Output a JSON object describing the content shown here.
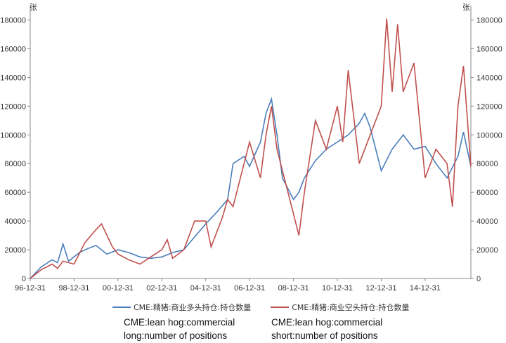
{
  "chart_data": {
    "type": "line",
    "unit_label_left": "张",
    "unit_label_right": "张",
    "ylim": [
      0,
      190000
    ],
    "yticks": [
      0,
      20000,
      40000,
      60000,
      80000,
      100000,
      120000,
      140000,
      160000,
      180000
    ],
    "xlim": [
      "1996-12-31",
      "2017-01-31"
    ],
    "xticks": [
      "96-12-31",
      "98-12-31",
      "00-12-31",
      "02-12-31",
      "04-12-31",
      "06-12-31",
      "08-12-31",
      "10-12-31",
      "12-12-31",
      "14-12-31"
    ],
    "grid": false,
    "legend_position": "bottom",
    "series": [
      {
        "name": "CME:精猪:商业多头持仓:持仓数量",
        "color": "#4a7ebb",
        "points": [
          [
            "1996-12-31",
            0
          ],
          [
            "1997-06-30",
            8000
          ],
          [
            "1997-12-31",
            13000
          ],
          [
            "1998-03-31",
            11000
          ],
          [
            "1998-06-30",
            24000
          ],
          [
            "1998-09-30",
            12000
          ],
          [
            "1999-03-31",
            18000
          ],
          [
            "1999-06-30",
            20000
          ],
          [
            "1999-12-31",
            23000
          ],
          [
            "2000-06-30",
            17000
          ],
          [
            "2000-12-31",
            20000
          ],
          [
            "2001-06-30",
            18000
          ],
          [
            "2001-12-31",
            15000
          ],
          [
            "2002-06-30",
            14000
          ],
          [
            "2002-12-31",
            15000
          ],
          [
            "2003-06-30",
            18000
          ],
          [
            "2003-12-31",
            20000
          ],
          [
            "2004-06-30",
            29000
          ],
          [
            "2004-12-31",
            38000
          ],
          [
            "2005-06-30",
            46000
          ],
          [
            "2005-12-31",
            55000
          ],
          [
            "2006-03-31",
            80000
          ],
          [
            "2006-09-30",
            85000
          ],
          [
            "2006-12-31",
            78000
          ],
          [
            "2007-06-30",
            95000
          ],
          [
            "2007-09-30",
            115000
          ],
          [
            "2007-12-31",
            125000
          ],
          [
            "2008-03-31",
            100000
          ],
          [
            "2008-06-30",
            70000
          ],
          [
            "2008-12-31",
            55000
          ],
          [
            "2009-03-31",
            60000
          ],
          [
            "2009-06-30",
            70000
          ],
          [
            "2009-12-31",
            82000
          ],
          [
            "2010-06-30",
            90000
          ],
          [
            "2010-12-31",
            95000
          ],
          [
            "2011-06-30",
            100000
          ],
          [
            "2011-12-31",
            108000
          ],
          [
            "2012-03-31",
            115000
          ],
          [
            "2012-06-30",
            105000
          ],
          [
            "2012-12-31",
            75000
          ],
          [
            "2013-06-30",
            90000
          ],
          [
            "2013-12-31",
            100000
          ],
          [
            "2014-06-30",
            90000
          ],
          [
            "2014-12-31",
            92000
          ],
          [
            "2015-06-30",
            80000
          ],
          [
            "2015-12-31",
            70000
          ],
          [
            "2016-06-30",
            85000
          ],
          [
            "2016-09-30",
            102000
          ],
          [
            "2017-01-31",
            78000
          ]
        ]
      },
      {
        "name": "CME:精猪:商业空头持仓:持仓数量",
        "color": "#c0504d",
        "points": [
          [
            "1996-12-31",
            0
          ],
          [
            "1997-06-30",
            6000
          ],
          [
            "1997-12-31",
            10000
          ],
          [
            "1998-03-31",
            7000
          ],
          [
            "1998-06-30",
            12000
          ],
          [
            "1998-12-31",
            10000
          ],
          [
            "1999-06-30",
            25000
          ],
          [
            "1999-12-31",
            34000
          ],
          [
            "2000-03-31",
            38000
          ],
          [
            "2000-09-30",
            22000
          ],
          [
            "2000-12-31",
            17000
          ],
          [
            "2001-06-30",
            13000
          ],
          [
            "2001-12-31",
            10000
          ],
          [
            "2002-06-30",
            15000
          ],
          [
            "2002-12-31",
            20000
          ],
          [
            "2003-03-31",
            27000
          ],
          [
            "2003-06-30",
            14000
          ],
          [
            "2003-12-31",
            20000
          ],
          [
            "2004-06-30",
            40000
          ],
          [
            "2004-12-31",
            40000
          ],
          [
            "2005-03-31",
            22000
          ],
          [
            "2005-09-30",
            42000
          ],
          [
            "2005-12-31",
            55000
          ],
          [
            "2006-03-31",
            50000
          ],
          [
            "2006-09-30",
            80000
          ],
          [
            "2006-12-31",
            95000
          ],
          [
            "2007-06-30",
            70000
          ],
          [
            "2007-09-30",
            100000
          ],
          [
            "2007-12-31",
            120000
          ],
          [
            "2008-03-31",
            90000
          ],
          [
            "2008-06-30",
            75000
          ],
          [
            "2008-12-31",
            45000
          ],
          [
            "2009-03-31",
            30000
          ],
          [
            "2009-06-30",
            60000
          ],
          [
            "2009-12-31",
            110000
          ],
          [
            "2010-06-30",
            90000
          ],
          [
            "2010-12-31",
            120000
          ],
          [
            "2011-03-31",
            95000
          ],
          [
            "2011-06-30",
            145000
          ],
          [
            "2011-12-31",
            80000
          ],
          [
            "2012-06-30",
            100000
          ],
          [
            "2012-12-31",
            120000
          ],
          [
            "2013-03-31",
            181000
          ],
          [
            "2013-06-30",
            130000
          ],
          [
            "2013-09-30",
            177000
          ],
          [
            "2013-12-31",
            130000
          ],
          [
            "2014-06-30",
            150000
          ],
          [
            "2014-12-31",
            70000
          ],
          [
            "2015-06-30",
            90000
          ],
          [
            "2015-12-31",
            80000
          ],
          [
            "2016-03-31",
            50000
          ],
          [
            "2016-06-30",
            120000
          ],
          [
            "2016-09-30",
            148000
          ],
          [
            "2017-01-31",
            78000
          ]
        ]
      }
    ]
  },
  "captions": {
    "long": "CME:lean hog:commercial long:number of positions",
    "short": "CME:lean hog:commercial short:number of positions"
  }
}
